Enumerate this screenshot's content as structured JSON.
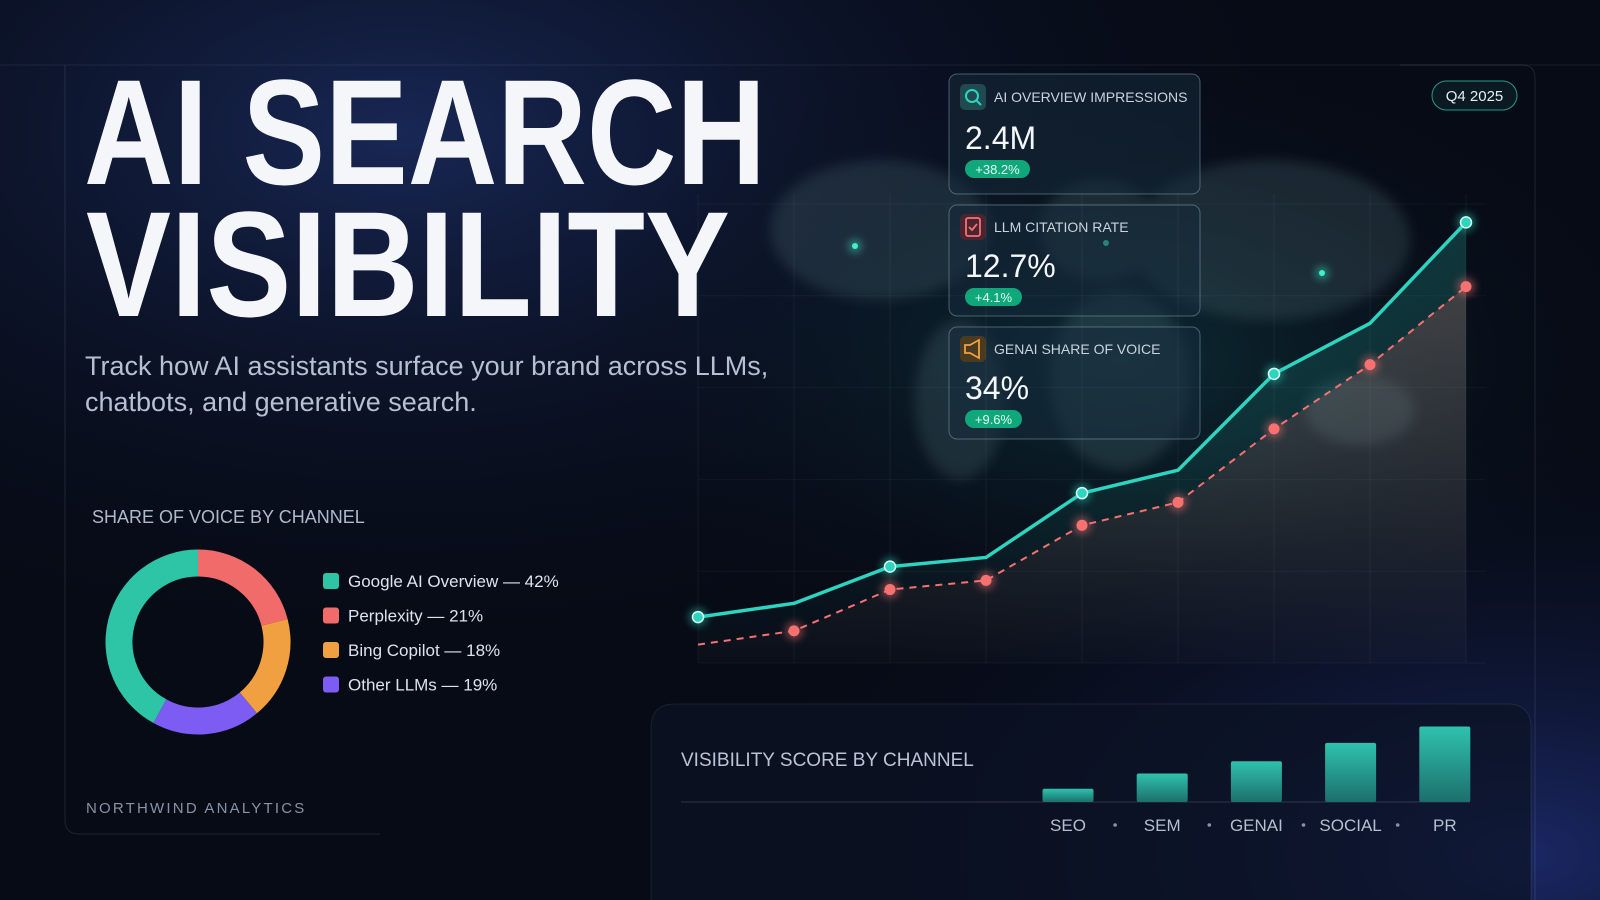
{
  "header": {
    "title_lines": [
      "AI SEARCH",
      "VISIBILITY"
    ],
    "subtitle_lines": [
      "Track how AI assistants surface your brand across LLMs,",
      "chatbots, and generative search."
    ],
    "badge": "Q4 2025",
    "brand": "NORTHWIND ANALYTICS"
  },
  "kpis": [
    {
      "label": "AI OVERVIEW IMPRESSIONS",
      "value": "2.4M",
      "change": "+38.2%"
    },
    {
      "label": "LLM CITATION RATE",
      "value": "12.7%",
      "change": "+4.1%"
    },
    {
      "label": "GENAI SHARE OF VOICE",
      "value": "34%",
      "change": "+9.6%"
    }
  ],
  "chart_data": [
    {
      "type": "line",
      "categories": [
        null,
        null,
        null,
        null,
        null,
        null,
        null,
        null,
        null
      ],
      "series": [
        {
          "color": "#2dd4bf",
          "values": [
            10,
            13,
            21,
            23,
            37,
            42,
            63,
            74,
            96
          ]
        },
        {
          "color": "#f87171",
          "dashed": true,
          "values": [
            4,
            7,
            16,
            18,
            30,
            35,
            51,
            65,
            82
          ]
        }
      ],
      "ylim": [
        0,
        100
      ],
      "grid": true
    },
    {
      "type": "pie",
      "title": "SHARE OF VOICE BY CHANNEL",
      "categories": [
        "Google AI Overview — 42%",
        "Perplexity — 21%",
        "Bing Copilot — 18%",
        "Other LLMs — 19%"
      ],
      "values": [
        42,
        21,
        18,
        19
      ],
      "colors": [
        "#2ec4a6",
        "#f26b6b",
        "#f0a040",
        "#7c5cf2"
      ]
    },
    {
      "type": "bar",
      "title": "VISIBILITY SCORE BY CHANNEL",
      "categories": [
        "SEO",
        "SEM",
        "GENAI",
        "SOCIAL",
        "PR"
      ],
      "values": [
        13,
        28,
        40,
        58,
        74
      ],
      "color": "#2bb5a3",
      "ylim": [
        0,
        100
      ]
    }
  ]
}
